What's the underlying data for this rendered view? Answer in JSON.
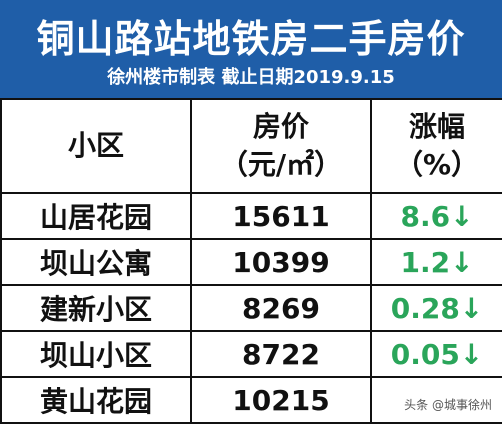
{
  "header": {
    "title": "铜山路站地铁房二手房价",
    "subtitle": "徐州楼市制表 截止日期2019.9.15"
  },
  "table": {
    "columns": [
      [
        "小区"
      ],
      [
        "房价",
        "（元/㎡）"
      ],
      [
        "涨幅",
        "（%）"
      ]
    ],
    "rows": [
      [
        "山居花园",
        "15611",
        "8.6↓"
      ],
      [
        "坝山公寓",
        "10399",
        "1.2↓"
      ],
      [
        "建新小区",
        "8269",
        "0.28↓"
      ],
      [
        "坝山小区",
        "8722",
        "0.05↓"
      ],
      [
        "黄山花园",
        "10215"
      ]
    ]
  },
  "watermark": "头条 @城事徐州"
}
